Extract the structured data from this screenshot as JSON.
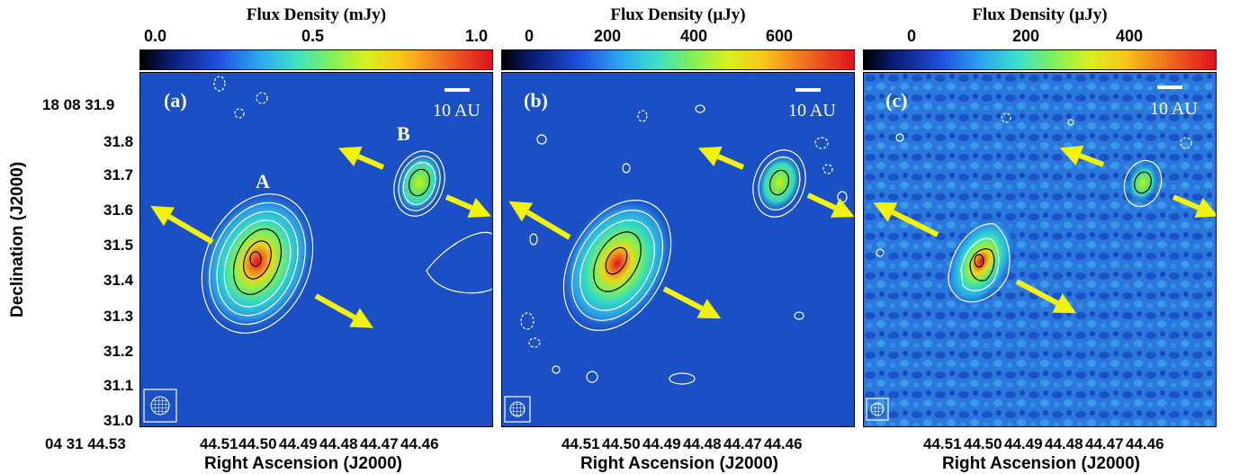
{
  "panels": [
    {
      "id": "a",
      "label": "(a)",
      "colorbar_title": "Flux Density (mJy)",
      "colorbar_ticks": [
        "0.0",
        "0.5",
        "1.0"
      ],
      "scale_label": "10 AU",
      "source_labels": [
        "A",
        "B"
      ]
    },
    {
      "id": "b",
      "label": "(b)",
      "colorbar_title": "Flux Density (µJy)",
      "colorbar_ticks": [
        "0",
        "200",
        "400",
        "600"
      ],
      "scale_label": "10 AU"
    },
    {
      "id": "c",
      "label": "(c)",
      "colorbar_title": "Flux Density (µJy)",
      "colorbar_ticks": [
        "0",
        "200",
        "400"
      ],
      "scale_label": "10 AU"
    }
  ],
  "axes": {
    "y_title": "Declination (J2000)",
    "y_ticks": [
      "18 08 31.9",
      "31.8",
      "31.7",
      "31.6",
      "31.5",
      "31.4",
      "31.3",
      "31.2",
      "31.1",
      "31.0"
    ],
    "x_title": "Right Ascension (J2000)",
    "x_first_tick": "04 31 44.53",
    "x_ticks": [
      "44.51",
      "44.50",
      "44.49",
      "44.48",
      "44.47",
      "44.46"
    ]
  },
  "colors": {
    "background_map": "#1a4fc8",
    "contour": "#ffffff",
    "arrow": "#f2f20a",
    "peak": "#e01020"
  }
}
